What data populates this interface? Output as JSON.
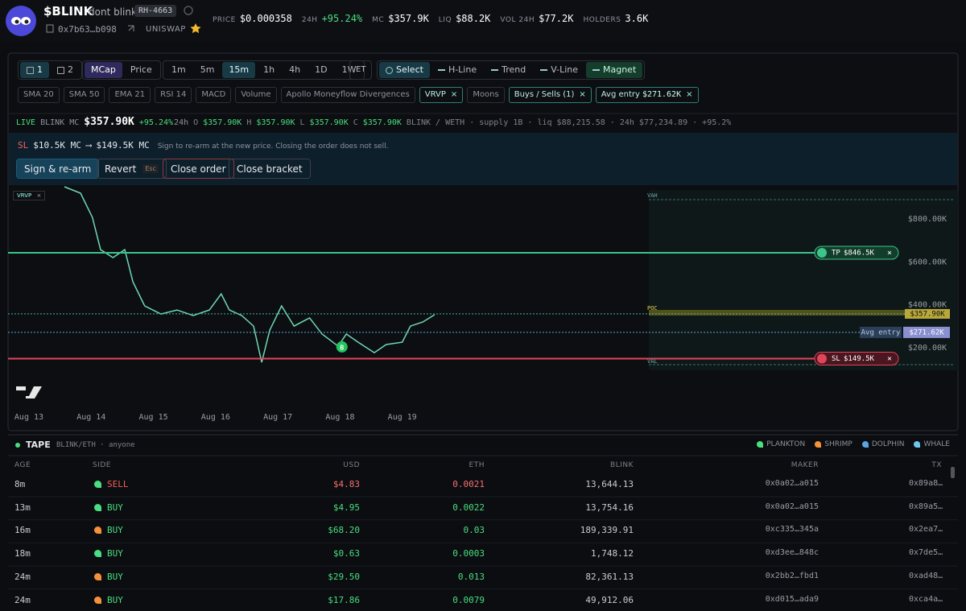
{
  "header": {
    "token": "$BLINK",
    "name": "dont blink",
    "badge": "RH-4663",
    "address": "0x7b63…b098",
    "dex": "UNISWAP",
    "stats": [
      {
        "label": "PRICE",
        "value": "$0.000358"
      },
      {
        "label": "24H",
        "value": "+95.24%"
      },
      {
        "label": "MC",
        "value": "$357.9K"
      },
      {
        "label": "LIQ",
        "value": "$88.2K"
      },
      {
        "label": "VOL 24H",
        "value": "$77.2K"
      },
      {
        "label": "HOLDERS",
        "value": "3.6K"
      }
    ]
  },
  "toolbar": {
    "layouts": [
      "1",
      "2"
    ],
    "modes": [
      "MCap",
      "Price"
    ],
    "intervals": [
      "1m",
      "5m",
      "15m",
      "1h",
      "4h",
      "1D",
      "1W"
    ],
    "et": "ET",
    "tools": [
      "Select",
      "H-Line",
      "Trend",
      "V-Line",
      "Magnet"
    ]
  },
  "indicators": [
    "SMA 20",
    "SMA 50",
    "EMA 21",
    "RSI 14",
    "MACD",
    "Volume",
    "Apollo Moneyflow Divergences",
    "VRVP",
    "Moons",
    "Buys / Sells (1)"
  ],
  "avg_entry_chip": {
    "label": "Avg entry",
    "value": "$271.62K"
  },
  "info": {
    "live": "LIVE",
    "pair_mc": "BLINK MC",
    "mc": "$357.90K",
    "change": "+95.24%",
    "period": "24h",
    "ohlc": [
      {
        "key": "O",
        "value": "$357.90K"
      },
      {
        "key": "H",
        "value": "$357.90K"
      },
      {
        "key": "L",
        "value": "$357.90K"
      },
      {
        "key": "C",
        "value": "$357.90K"
      }
    ],
    "details": "BLINK / WETH · supply 1B · liq $88,215.58 · 24h $77,234.89 · +95.2%"
  },
  "order": {
    "sl": "SL",
    "from": "$10.5K MC",
    "arrow": "⟶",
    "to": "$149.5K MC",
    "note": "Sign to re-arm at the new price. Closing the order does not sell.",
    "sign": "Sign & re-arm",
    "revert": "Revert",
    "esc": "Esc",
    "close_order": "Close order",
    "close_bracket": "Close bracket"
  },
  "chart_data": {
    "type": "line",
    "vrvp_tag": "VRVP",
    "x": [
      0.57,
      0.83,
      1.02,
      1.15,
      1.35,
      1.54,
      1.67,
      1.86,
      2.12,
      2.38,
      2.64,
      2.9,
      3.09,
      3.22,
      3.42,
      3.61,
      3.74,
      3.87,
      4.06,
      4.26,
      4.51,
      4.71,
      4.97,
      5.1,
      5.29,
      5.55,
      5.74,
      6.0,
      6.13,
      6.33,
      6.52
    ],
    "values": [
      950,
      920,
      807,
      657,
      620,
      657,
      507,
      395,
      357,
      376,
      350,
      376,
      451,
      376,
      350,
      301,
      132,
      282,
      395,
      301,
      339,
      264,
      207,
      264,
      226,
      177,
      215,
      226,
      301,
      320,
      354
    ],
    "xlim": [
      -0.336,
      14.93
    ],
    "ylim": [
      0,
      950
    ],
    "xticks": [
      {
        "value": 0,
        "label": "Aug 13"
      },
      {
        "value": 1,
        "label": "Aug 14"
      },
      {
        "value": 2,
        "label": "Aug 15"
      },
      {
        "value": 3,
        "label": "Aug 16"
      },
      {
        "value": 4,
        "label": "Aug 17"
      },
      {
        "value": 5,
        "label": "Aug 18"
      },
      {
        "value": 6,
        "label": "Aug 19"
      }
    ],
    "yticks": [
      {
        "value": 200,
        "label": "$200.00K"
      },
      {
        "value": 400,
        "label": "$400.00K"
      },
      {
        "value": 600,
        "label": "$600.00K"
      },
      {
        "value": 800,
        "label": "$800.00K"
      }
    ],
    "last": {
      "value": 357.9,
      "label": "$357.90K"
    },
    "avg_entry": {
      "value": 271.62,
      "label": "$271.62K",
      "name": "Avg entry"
    },
    "sl": {
      "value": 149.5,
      "label": "$149.5K",
      "name": "SL"
    },
    "tp": {
      "label": "$846.5K",
      "name": "TP"
    },
    "vah": "VAH",
    "poc": "POC",
    "val": "VAL",
    "buy_marker": {
      "label": "B",
      "x": 5.03,
      "value": 204
    }
  },
  "tape": {
    "title": "TAPE",
    "pair": "BLINK/ETH · anyone",
    "legend": [
      "PLANKTON",
      "SHRIMP",
      "DOLPHIN",
      "WHALE"
    ],
    "columns": [
      "AGE",
      "SIDE",
      "USD",
      "ETH",
      "BLINK",
      "MAKER",
      "TX"
    ],
    "rows": [
      {
        "tier": "PLANKTON",
        "cells": [
          "8m",
          "SELL",
          "$4.83",
          "0.0021",
          "13,644.13",
          "0x0a02…a015",
          "0x89a8…"
        ]
      },
      {
        "tier": "PLANKTON",
        "cells": [
          "13m",
          "BUY",
          "$4.95",
          "0.0022",
          "13,754.16",
          "0x0a02…a015",
          "0x89a5…"
        ]
      },
      {
        "tier": "SHRIMP",
        "cells": [
          "16m",
          "BUY",
          "$68.20",
          "0.03",
          "189,339.91",
          "0xc335…345a",
          "0x2ea7…"
        ]
      },
      {
        "tier": "PLANKTON",
        "cells": [
          "18m",
          "BUY",
          "$0.63",
          "0.0003",
          "1,748.12",
          "0xd3ee…848c",
          "0x7de5…"
        ]
      },
      {
        "tier": "SHRIMP",
        "cells": [
          "24m",
          "BUY",
          "$29.50",
          "0.013",
          "82,361.13",
          "0x2bb2…fbd1",
          "0xad48…"
        ]
      },
      {
        "tier": "SHRIMP",
        "cells": [
          "24m",
          "BUY",
          "$17.86",
          "0.0079",
          "49,912.06",
          "0xd015…ada9",
          "0xca4a…"
        ]
      }
    ]
  }
}
